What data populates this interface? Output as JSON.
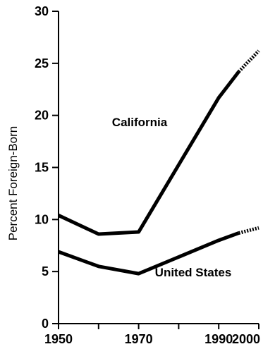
{
  "chart_data": {
    "type": "line",
    "ylabel": "Percent Foreign-Born",
    "xlabel": "",
    "xlim": [
      1950,
      2000
    ],
    "ylim": [
      0,
      30
    ],
    "x_ticks": [
      1950,
      1960,
      1970,
      1980,
      1990,
      2000
    ],
    "x_tick_labels": [
      "1950",
      "",
      "1970",
      "",
      "1990",
      "2000"
    ],
    "y_ticks": [
      0,
      5,
      10,
      15,
      20,
      25,
      30
    ],
    "y_tick_labels": [
      "0",
      "5",
      "10",
      "15",
      "20",
      "25",
      "30"
    ],
    "grid": false,
    "series": [
      {
        "name": "California",
        "color": "#000000",
        "solid": {
          "x": [
            1950,
            1960,
            1970,
            1990,
            1995
          ],
          "y": [
            10.4,
            8.6,
            8.8,
            21.7,
            24.2
          ]
        },
        "projected": {
          "x": [
            1995,
            2000
          ],
          "y": [
            24.2,
            26.2
          ]
        }
      },
      {
        "name": "United States",
        "color": "#000000",
        "solid": {
          "x": [
            1950,
            1960,
            1970,
            1990,
            1995
          ],
          "y": [
            6.9,
            5.5,
            4.8,
            8.0,
            8.7
          ]
        },
        "projected": {
          "x": [
            1995,
            2000
          ],
          "y": [
            8.7,
            9.2
          ]
        }
      }
    ]
  }
}
